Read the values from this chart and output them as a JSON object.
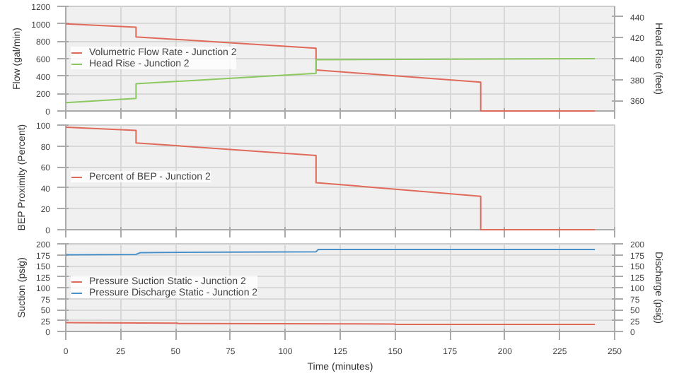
{
  "chart_data": [
    {
      "type": "line",
      "ylabel": "Flow (gal/min)",
      "y2label": "Head Rise (feet)",
      "xlim": [
        0,
        250
      ],
      "xticks": [
        0,
        25,
        50,
        75,
        100,
        125,
        150,
        175,
        200,
        225,
        250
      ],
      "ylim": [
        0,
        1200
      ],
      "yticks": [
        0,
        200,
        400,
        600,
        800,
        1000,
        1200
      ],
      "y2lim": [
        350,
        450
      ],
      "y2ticks": [
        360,
        380,
        400,
        420,
        440
      ],
      "grid": true,
      "legend": "left",
      "tick_labels": "y",
      "series": [
        {
          "name": "Volumetric Flow Rate - Junction 2",
          "color": "#e06a5a",
          "x": [
            0,
            32,
            32,
            114,
            114,
            189,
            189,
            241
          ],
          "values": [
            1000,
            960,
            850,
            720,
            470,
            330,
            0,
            0
          ]
        },
        {
          "name": "Head Rise - Junction 2",
          "color": "#8cc860",
          "axis": "y2",
          "x": [
            0,
            32,
            32,
            114,
            114,
            241
          ],
          "values": [
            358,
            362,
            376,
            386,
            399,
            400
          ]
        }
      ]
    },
    {
      "type": "line",
      "ylabel": "BEP Proximity (Percent)",
      "xlim": [
        0,
        250
      ],
      "xticks": [
        0,
        25,
        50,
        75,
        100,
        125,
        150,
        175,
        200,
        225,
        250
      ],
      "ylim": [
        0,
        100
      ],
      "yticks": [
        0,
        20,
        40,
        60,
        80,
        100
      ],
      "grid": true,
      "legend": "left",
      "tick_labels": "y",
      "series": [
        {
          "name": "Percent of BEP - Junction 2",
          "color": "#e06a5a",
          "x": [
            0,
            32,
            32,
            114,
            114,
            189,
            189,
            241
          ],
          "values": [
            98,
            95,
            83,
            71,
            45,
            32,
            0,
            0
          ]
        }
      ]
    },
    {
      "type": "line",
      "xlabel": "Time (minutes)",
      "ylabel": "Suction (psig)",
      "y2label": "Discharge (psig)",
      "xlim": [
        0,
        250
      ],
      "xticks": [
        0,
        25,
        50,
        75,
        100,
        125,
        150,
        175,
        200,
        225,
        250
      ],
      "ylim": [
        0,
        200
      ],
      "yticks": [
        0,
        25,
        50,
        75,
        100,
        125,
        150,
        175,
        200
      ],
      "y2lim": [
        0,
        200
      ],
      "y2ticks": [
        0,
        25,
        50,
        75,
        100,
        125,
        150,
        175,
        200
      ],
      "grid": true,
      "legend": "left",
      "series": [
        {
          "name": "Pressure Suction Static - Junction 2",
          "color": "#e06a5a",
          "x": [
            0,
            51,
            51,
            150,
            150,
            241
          ],
          "values": [
            20,
            19,
            18,
            17,
            16,
            16
          ]
        },
        {
          "name": "Pressure Discharge Static - Junction 2",
          "color": "#4a90c8",
          "axis": "y2",
          "x": [
            0,
            32,
            34,
            114,
            115,
            241
          ],
          "values": [
            175,
            176,
            180,
            182,
            187,
            187
          ]
        }
      ]
    }
  ]
}
